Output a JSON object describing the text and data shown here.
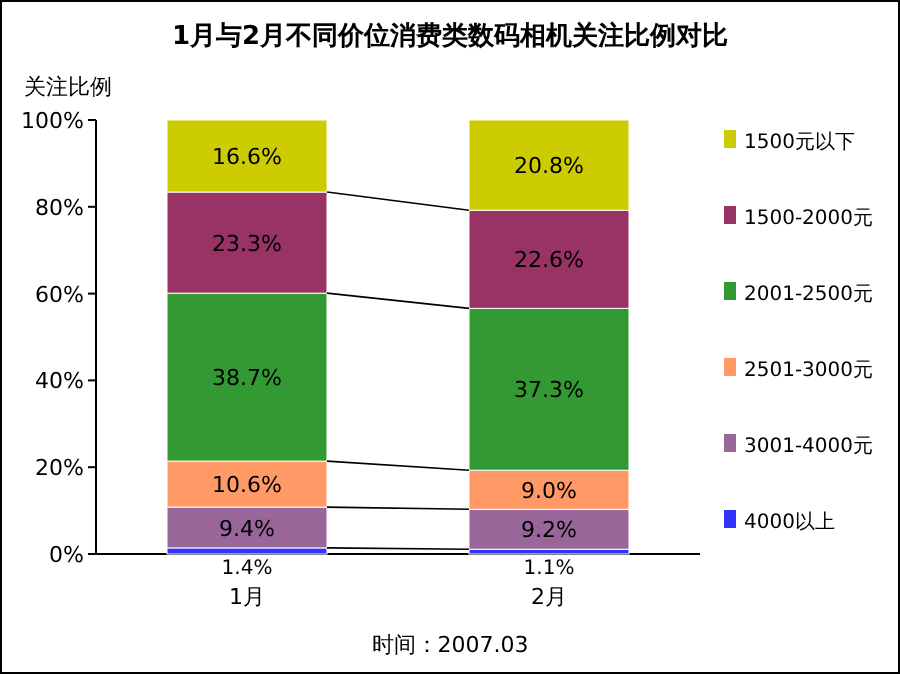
{
  "chart_data": {
    "type": "bar",
    "stacked": true,
    "title": "1月与2月不同价位消费类数码相机关注比例对比",
    "ylabel": "关注比例",
    "categories": [
      "1月",
      "2月"
    ],
    "series": [
      {
        "name": "4000以上",
        "color": "#3333ff",
        "values": [
          1.4,
          1.1
        ],
        "value_labels": [
          "1.4%",
          "1.1%"
        ]
      },
      {
        "name": "3001-4000元",
        "color": "#996699",
        "values": [
          9.4,
          9.2
        ],
        "value_labels": [
          "9.4%",
          "9.2%"
        ]
      },
      {
        "name": "2501-3000元",
        "color": "#ff9966",
        "values": [
          10.6,
          9.0
        ],
        "value_labels": [
          "10.6%",
          "9.0%"
        ]
      },
      {
        "name": "2001-2500元",
        "color": "#339933",
        "values": [
          38.7,
          37.3
        ],
        "value_labels": [
          "38.7%",
          "37.3%"
        ]
      },
      {
        "name": "1500-2000元",
        "color": "#993366",
        "values": [
          23.3,
          22.6
        ],
        "value_labels": [
          "23.3%",
          "22.6%"
        ]
      },
      {
        "name": "1500元以下",
        "color": "#cccc00",
        "values": [
          16.6,
          20.8
        ],
        "value_labels": [
          "16.6%",
          "20.8%"
        ]
      }
    ],
    "ylim": [
      0,
      100
    ],
    "yticks": [
      {
        "value": 0,
        "label": "0%"
      },
      {
        "value": 20,
        "label": "20%"
      },
      {
        "value": 40,
        "label": "40%"
      },
      {
        "value": 60,
        "label": "60%"
      },
      {
        "value": 80,
        "label": "80%"
      },
      {
        "value": 100,
        "label": "100%"
      }
    ],
    "legend": "right",
    "grid": false,
    "annotations": [
      "时间：2007.03"
    ]
  }
}
